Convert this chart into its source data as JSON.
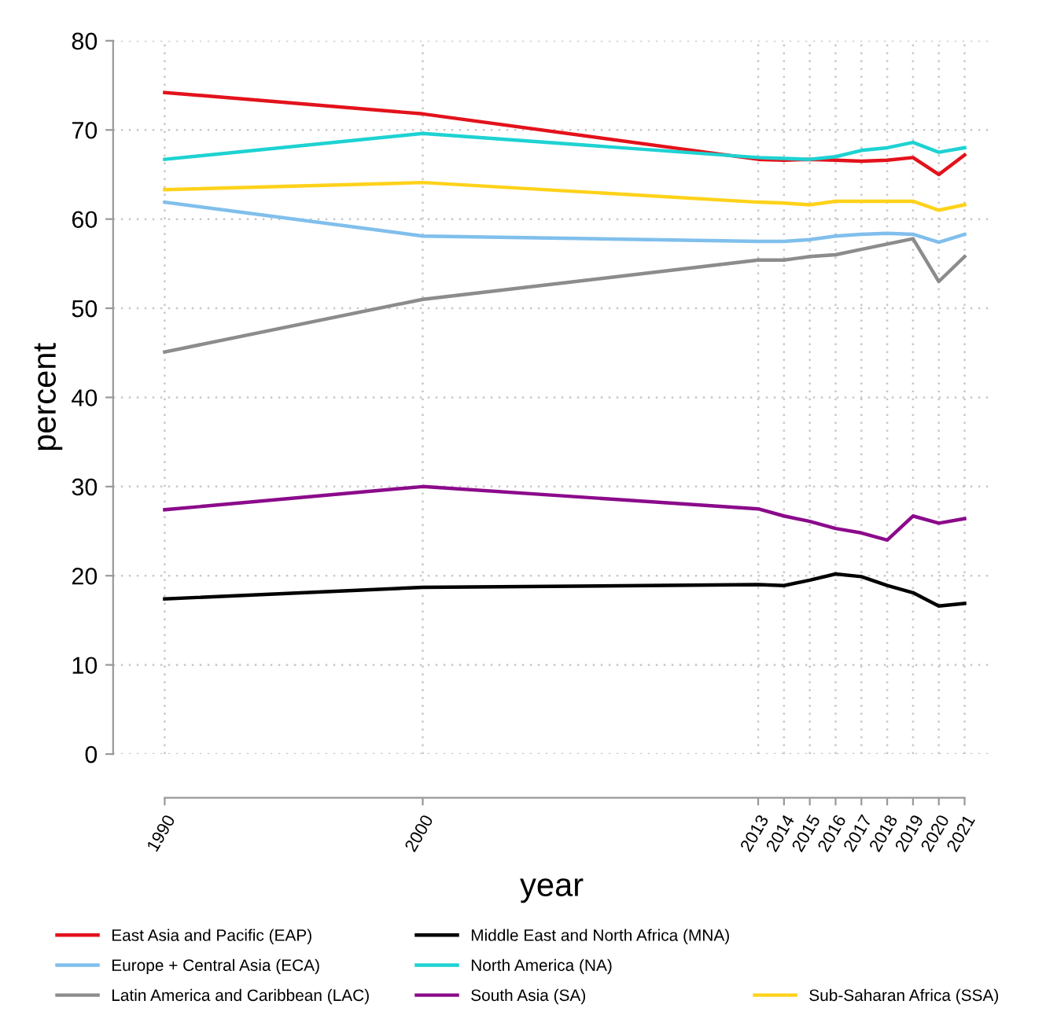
{
  "chart_data": {
    "type": "line",
    "xlabel": "year",
    "ylabel": "percent",
    "x": [
      1990,
      2000,
      2013,
      2014,
      2015,
      2016,
      2017,
      2018,
      2019,
      2020,
      2021
    ],
    "xlim": [
      1988,
      2022
    ],
    "xticks": [
      1990,
      2000,
      2013,
      2014,
      2015,
      2016,
      2017,
      2018,
      2019,
      2020,
      2021
    ],
    "ylim": [
      0,
      80
    ],
    "yticks": [
      0,
      10,
      20,
      30,
      40,
      50,
      60,
      70,
      80
    ],
    "grid": true,
    "legend": "bottom",
    "marker": "none",
    "line_style": "solid",
    "series": [
      {
        "name": "East Asia and Pacific (EAP)",
        "color": "#e3121b",
        "values": [
          74.2,
          71.8,
          66.7,
          66.6,
          66.7,
          66.6,
          66.5,
          66.6,
          66.9,
          65.0,
          67.2
        ]
      },
      {
        "name": "Europe + Central Asia (ECA)",
        "color": "#80bfec",
        "values": [
          61.9,
          58.1,
          57.5,
          57.5,
          57.7,
          58.1,
          58.3,
          58.4,
          58.3,
          57.4,
          58.3
        ]
      },
      {
        "name": "Latin America and Caribbean (LAC)",
        "color": "#8c8c8c",
        "values": [
          45.1,
          51.0,
          55.4,
          55.4,
          55.8,
          56.0,
          56.6,
          57.2,
          57.8,
          53.0,
          55.8
        ]
      },
      {
        "name": "Middle East and North Africa (MNA)",
        "color": "#000000",
        "values": [
          17.4,
          18.7,
          19.0,
          18.9,
          19.5,
          20.2,
          19.9,
          18.9,
          18.1,
          16.6,
          16.9
        ]
      },
      {
        "name": "North America (NA)",
        "color": "#1ed2d2",
        "values": [
          66.7,
          69.6,
          66.9,
          66.8,
          66.7,
          67.0,
          67.7,
          68.0,
          68.6,
          67.5,
          68.0
        ]
      },
      {
        "name": "South Asia (SA)",
        "color": "#8b0a8b",
        "values": [
          27.4,
          30.0,
          27.5,
          26.7,
          26.1,
          25.3,
          24.8,
          24.0,
          26.7,
          25.9,
          26.4
        ]
      },
      {
        "name": "Sub-Saharan Africa (SSA)",
        "color": "#ffd21a",
        "values": [
          63.3,
          64.1,
          61.9,
          61.8,
          61.6,
          62.0,
          62.0,
          62.0,
          62.0,
          61.0,
          61.6
        ]
      }
    ]
  }
}
